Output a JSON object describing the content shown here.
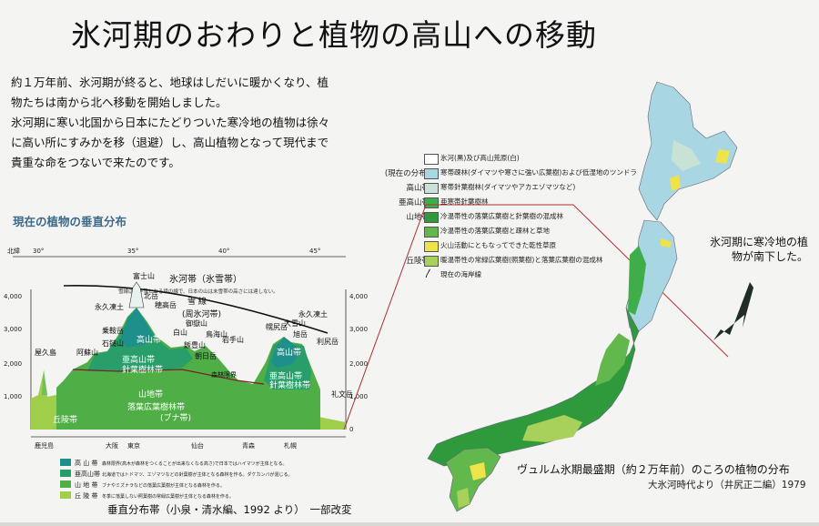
{
  "title": "氷河期のおわりと植物の高山への移動",
  "intro": [
    "約１万年前、氷河期が終ると、地球はしだいに暖かくなり、植物たちは南から北へ移動を開始しました。",
    "氷河期に寒い北国から日本にたどりついた寒冷地の植物は徐々に高い所にすみかを移（退避）し、高山植物となって現代まで貴重な命をつないで来たのです。"
  ],
  "vertical": {
    "title": "現在の植物の垂直分布",
    "lat_label": "北緯",
    "lat_ticks": [
      "30°",
      "35°",
      "40°",
      "45°"
    ],
    "alt_left": [
      "4,000",
      "3,000",
      "2,000",
      "1,000"
    ],
    "alt_right": [
      "4,000",
      "3,000",
      "2,000",
      "1,000",
      "0"
    ],
    "zone_glacier": "氷河帯（氷雪帯）",
    "zone_glacier_note": "雪線は万年雪となる境の線で、日本の山は未雪帯の高さには達しない。",
    "snow_line": "雪 線",
    "zone_periglacial": "(周氷河帯)",
    "zone_alpine": "高山帯",
    "zone_subalpine": "亜高山帯",
    "zone_subalpine_sub": "針葉樹林帯",
    "zone_montane": "山地帯",
    "zone_montane_sub": "落葉広葉樹林帯",
    "zone_montane_note": "(ブナ帯)",
    "zone_hill": "丘陵帯",
    "forest_line": "森林限界",
    "peaks": [
      "屋久島",
      "阿蘇山",
      "石鎚山",
      "永久凍土",
      "富士山",
      "北岳",
      "穂高岳",
      "乗鞍岳",
      "白山",
      "御嶽山",
      "飯豊山",
      "朝日岳",
      "鳥海山",
      "岩手山",
      "幌尻岳",
      "大雪山",
      "旭岳",
      "永久凍土",
      "利尻岳",
      "礼文岳"
    ],
    "cities": [
      "鹿児島",
      "大阪",
      "東京",
      "仙台",
      "青森",
      "札幌"
    ],
    "legend": [
      {
        "zone": "高 山 帯",
        "text": "森林限界(高木が森林をつくることが出来なくなる高さ)で日本ではハイマツが主体となる。",
        "color": "#1e8f8a"
      },
      {
        "zone": "亜高山帯",
        "text": "北海道ではトドマツ、エゾマツなどの針葉樹が主体となる森林を作る。ダケカンバが混じる。",
        "color": "#2a9e6a"
      },
      {
        "zone": "山 地 帯",
        "text": "ブナやミズナラなどの落葉広葉樹が主体となる森林を作る。",
        "color": "#4fae45"
      },
      {
        "zone": "丘 陵 帯",
        "text": "冬季に落葉しない照葉樹の常緑広葉樹が主体となる森林を作る。",
        "color": "#9fce4a"
      }
    ],
    "caption": "垂直分布帯（小泉・清水編、1992 より）　一部改変"
  },
  "map_legend": {
    "header": "(現在の分布)",
    "rows": [
      {
        "zone": "",
        "text": "氷河(黒)及び高山荒原(白)",
        "color": "#ffffff"
      },
      {
        "zone": "高山帯",
        "text": "寒帯疎林(ダイマツや寒さに強い広葉樹)および低湿地のツンドラ",
        "color": "#a8d6e3"
      },
      {
        "zone": "亜高山帯",
        "text": "寒帯針葉樹林(ダイマツやアカエゾマツなど)",
        "color": "#c8e3d6"
      },
      {
        "zone": "山地帯",
        "text": "亜寒帯針葉樹林",
        "color": "#3fae4a"
      },
      {
        "zone": "",
        "text": "冷温帯性の落葉広葉樹と針葉樹の混成林",
        "color": "#2e9a3c"
      },
      {
        "zone": "",
        "text": "冷温帯性の落葉広葉樹と疎林と草地",
        "color": "#63b84d"
      },
      {
        "zone": "",
        "text": "火山活動にともなってできた乾性草原",
        "color": "#efe34a"
      },
      {
        "zone": "丘陵帯",
        "text": "暖温帯性の常緑広葉樹(照葉樹)と落葉広葉樹の混成林",
        "color": "#a8d15b"
      },
      {
        "zone": "",
        "text": "現在の海岸線",
        "color": "#ffffff"
      }
    ]
  },
  "map_note": "氷河期に寒冷地の植物が南下した。",
  "map_caption": "ヴュルム氷期最盛期（約２万年前）のころの植物の分布",
  "map_source": "大氷河時代より（井尻正二編）1979",
  "colors": {
    "alpine": "#1e8f8a",
    "subalpine": "#2a9e6a",
    "montane": "#4fae45",
    "hill": "#9fce4a",
    "background": "#f4f4f2"
  }
}
